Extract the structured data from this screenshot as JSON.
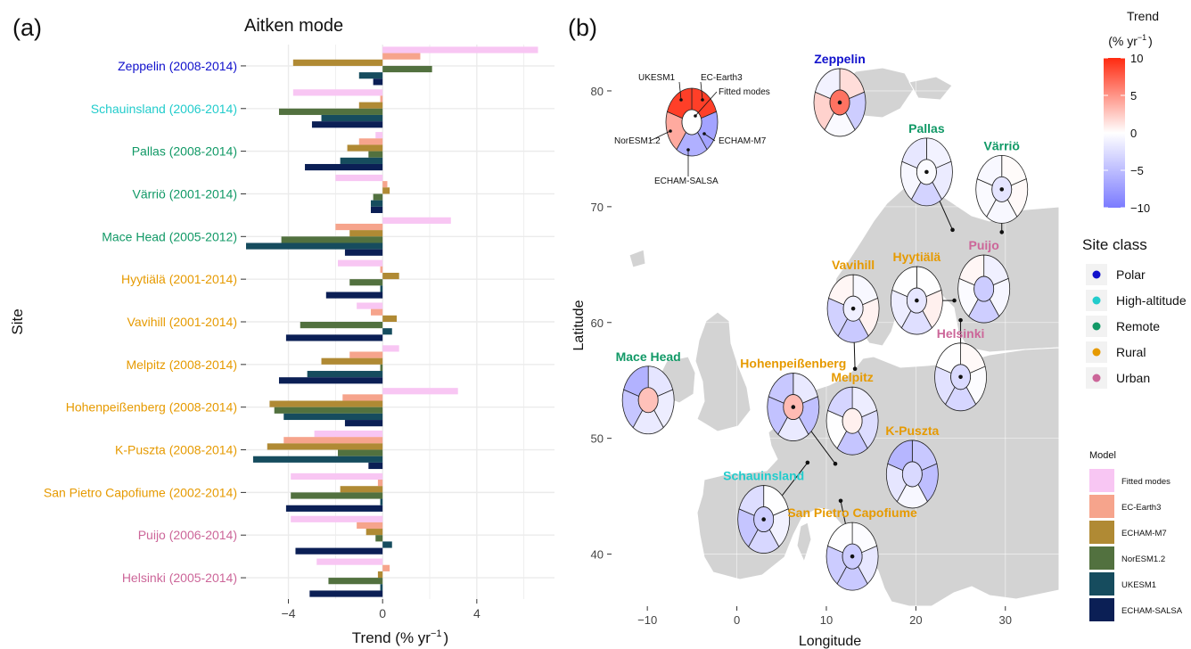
{
  "panel_a": {
    "tag": "(a)",
    "title": "Aitken mode",
    "ylabel": "Site",
    "xlabel_main": "Trend (% yr",
    "xlabel_sup": "−1",
    "xlabel_close": ")"
  },
  "panel_b": {
    "tag": "(b)",
    "xlabel": "Longitude",
    "ylabel": "Latitude",
    "x_ticks": [
      -10,
      0,
      10,
      20,
      30
    ],
    "y_ticks": [
      40,
      50,
      60,
      70,
      80
    ],
    "key_labels": {
      "ukesm1": "UKESM1",
      "ecearth3": "EC-Earth3",
      "fitted": "Fitted modes",
      "noresm": "NorESM1.2",
      "echam_m7": "ECHAM-M7",
      "echam_salsa": "ECHAM-SALSA"
    }
  },
  "colors": {
    "Polar": "#1111cc",
    "High-altitude": "#22cccc",
    "Remote": "#119966",
    "Rural": "#e69a00",
    "Urban": "#cc6699",
    "Fitted modes": "#f8c6f3",
    "EC-Earth3": "#f6a48c",
    "ECHAM-M7": "#b08a34",
    "NorESM1.2": "#52713f",
    "UKESM1": "#164c5e",
    "ECHAM-SALSA": "#0b1f55"
  },
  "legend": {
    "trend_title": "Trend",
    "trend_unit_main": "(% yr",
    "trend_unit_sup": "−1",
    "trend_unit_close": ")",
    "trend_ticks": [
      10,
      5,
      0,
      -5,
      -10
    ],
    "site_class_title": "Site class",
    "site_classes": [
      "Polar",
      "High-altitude",
      "Remote",
      "Rural",
      "Urban"
    ],
    "model_title": "Model",
    "models": [
      "Fitted modes",
      "EC-Earth3",
      "ECHAM-M7",
      "NorESM1.2",
      "UKESM1",
      "ECHAM-SALSA"
    ]
  },
  "chart_data": [
    {
      "type": "bar",
      "orientation": "horizontal",
      "title": "Aitken mode",
      "xlabel": "Trend (% yr⁻¹)",
      "ylabel": "Site",
      "xlim": [
        -5.8,
        7.3
      ],
      "x_ticks": [
        -4,
        0,
        4
      ],
      "grid": true,
      "legend_position": "right",
      "sites": [
        {
          "label": "Zeppelin (2008-2014)",
          "class": "Polar"
        },
        {
          "label": "Schauinsland (2006-2014)",
          "class": "High-altitude"
        },
        {
          "label": "Pallas (2008-2014)",
          "class": "Remote"
        },
        {
          "label": "Värriö (2001-2014)",
          "class": "Remote"
        },
        {
          "label": "Mace Head (2005-2012)",
          "class": "Remote"
        },
        {
          "label": "Hyytiälä (2001-2014)",
          "class": "Rural"
        },
        {
          "label": "Vavihill (2001-2014)",
          "class": "Rural"
        },
        {
          "label": "Melpitz (2008-2014)",
          "class": "Rural"
        },
        {
          "label": "Hohenpeißenberg (2008-2014)",
          "class": "Rural"
        },
        {
          "label": "K-Puszta (2008-2014)",
          "class": "Rural"
        },
        {
          "label": "San Pietro Capofiume (2002-2014)",
          "class": "Rural"
        },
        {
          "label": "Puijo (2006-2014)",
          "class": "Urban"
        },
        {
          "label": "Helsinki (2005-2014)",
          "class": "Urban"
        }
      ],
      "series": [
        {
          "name": "Fitted modes",
          "values": [
            6.6,
            -3.8,
            -0.3,
            -2.0,
            2.9,
            -1.9,
            -1.1,
            0.7,
            3.2,
            -2.9,
            -3.9,
            -3.9,
            -2.8
          ]
        },
        {
          "name": "EC-Earth3",
          "values": [
            1.6,
            -0.1,
            -1.0,
            0.2,
            -2.0,
            -0.1,
            -0.5,
            -1.4,
            -1.7,
            -4.2,
            -0.2,
            -1.1,
            0.3
          ]
        },
        {
          "name": "ECHAM-M7",
          "values": [
            -3.8,
            -1.0,
            -1.5,
            0.3,
            -1.4,
            0.7,
            0.6,
            -2.6,
            -4.8,
            -4.9,
            -1.8,
            -0.7,
            -0.2
          ]
        },
        {
          "name": "NorESM1.2",
          "values": [
            2.1,
            -4.4,
            -0.6,
            -0.4,
            -4.3,
            -1.4,
            -3.5,
            -0.1,
            -4.6,
            -1.9,
            -3.9,
            -0.3,
            -2.3
          ]
        },
        {
          "name": "UKESM1",
          "values": [
            -1.0,
            -2.6,
            -1.8,
            -0.5,
            -5.8,
            -0.1,
            0.4,
            -3.2,
            -4.2,
            -5.5,
            -0.1,
            0.4,
            -0.1
          ]
        },
        {
          "name": "ECHAM-SALSA",
          "values": [
            -0.4,
            -3.0,
            -3.3,
            -0.5,
            -1.6,
            -2.4,
            -4.1,
            -4.4,
            -1.6,
            -0.6,
            -4.1,
            -3.7,
            -3.1
          ]
        }
      ]
    },
    {
      "type": "map",
      "xlabel": "Longitude",
      "ylabel": "Latitude",
      "xlim": [
        -14,
        36
      ],
      "ylim": [
        35.5,
        84
      ],
      "x_ticks": [
        -10,
        0,
        10,
        20,
        30
      ],
      "y_ticks": [
        40,
        50,
        60,
        70,
        80
      ],
      "color_scale": {
        "min": -10,
        "max": 10,
        "low": "#7b7bff",
        "mid": "#ffffff",
        "high": "#ff2a10"
      },
      "segment_order": [
        "Fitted modes",
        "EC-Earth3",
        "ECHAM-M7",
        "ECHAM-SALSA",
        "NorESM1.2",
        "UKESM1"
      ],
      "sites": [
        {
          "name": "Zeppelin",
          "class": "Polar",
          "lon": 11.9,
          "lat": 78.9,
          "glyph_lon": 11.5,
          "glyph_lat": 79.0,
          "trends": [
            6.6,
            1.6,
            -3.8,
            -0.4,
            2.1,
            -1.0
          ]
        },
        {
          "name": "Pallas",
          "class": "Remote",
          "lon": 24.1,
          "lat": 68.0,
          "glyph_lon": 21.2,
          "glyph_lat": 73.0,
          "trends": [
            -0.3,
            -1.0,
            -1.5,
            -3.3,
            -0.6,
            -1.8
          ]
        },
        {
          "name": "Värriö",
          "class": "Remote",
          "lon": 29.6,
          "lat": 67.8,
          "glyph_lon": 29.6,
          "glyph_lat": 71.5,
          "trends": [
            -2.0,
            0.2,
            0.3,
            -0.5,
            -0.4,
            -0.5
          ]
        },
        {
          "name": "Puijo",
          "class": "Urban",
          "lon": 27.6,
          "lat": 62.9,
          "glyph_lon": 27.6,
          "glyph_lat": 62.9,
          "trends": [
            -3.9,
            -1.1,
            -0.7,
            -3.7,
            -0.3,
            0.4
          ]
        },
        {
          "name": "Hyytiälä",
          "class": "Rural",
          "lon": 24.3,
          "lat": 61.9,
          "glyph_lon": 20.1,
          "glyph_lat": 61.9,
          "trends": [
            -1.9,
            -0.1,
            0.7,
            -2.4,
            -1.4,
            -0.1
          ]
        },
        {
          "name": "Vavihill",
          "class": "Rural",
          "lon": 13.2,
          "lat": 56.0,
          "glyph_lon": 13.0,
          "glyph_lat": 61.2,
          "trends": [
            -1.1,
            -0.5,
            0.6,
            -4.1,
            -3.5,
            0.4
          ]
        },
        {
          "name": "Helsinki",
          "class": "Urban",
          "lon": 25.0,
          "lat": 60.2,
          "glyph_lon": 25.0,
          "glyph_lat": 55.3,
          "trends": [
            -2.8,
            0.3,
            -0.2,
            -3.1,
            -2.3,
            -0.1
          ]
        },
        {
          "name": "Mace Head",
          "class": "Remote",
          "lon": -9.9,
          "lat": 53.3,
          "glyph_lon": -9.9,
          "glyph_lat": 53.3,
          "trends": [
            2.9,
            -2.0,
            -1.4,
            -1.6,
            -4.3,
            -5.8
          ]
        },
        {
          "name": "Hohenpeißenberg",
          "class": "Rural",
          "lon": 11.0,
          "lat": 47.8,
          "glyph_lon": 6.3,
          "glyph_lat": 52.7,
          "trends": [
            3.2,
            -1.7,
            -4.8,
            -1.6,
            -4.6,
            -4.2
          ]
        },
        {
          "name": "Melpitz",
          "class": "Rural",
          "lon": 12.9,
          "lat": 51.5,
          "glyph_lon": 12.9,
          "glyph_lat": 51.5,
          "trends": [
            0.7,
            -1.4,
            -2.6,
            -4.4,
            -0.1,
            -3.2
          ]
        },
        {
          "name": "K-Puszta",
          "class": "Rural",
          "lon": 19.6,
          "lat": 46.9,
          "glyph_lon": 19.6,
          "glyph_lat": 46.9,
          "trends": [
            -2.9,
            -4.2,
            -4.9,
            -0.6,
            -1.9,
            -5.5
          ]
        },
        {
          "name": "Schauinsland",
          "class": "High-altitude",
          "lon": 7.9,
          "lat": 47.9,
          "glyph_lon": 3.0,
          "glyph_lat": 43.0,
          "trends": [
            -3.8,
            -0.1,
            -1.0,
            -3.0,
            -4.4,
            -2.6
          ]
        },
        {
          "name": "San Pietro Capofiume",
          "class": "Rural",
          "lon": 11.6,
          "lat": 44.6,
          "glyph_lon": 12.9,
          "glyph_lat": 39.8,
          "trends": [
            -3.9,
            -0.2,
            -1.8,
            -4.1,
            -3.9,
            -0.1
          ]
        }
      ]
    }
  ]
}
